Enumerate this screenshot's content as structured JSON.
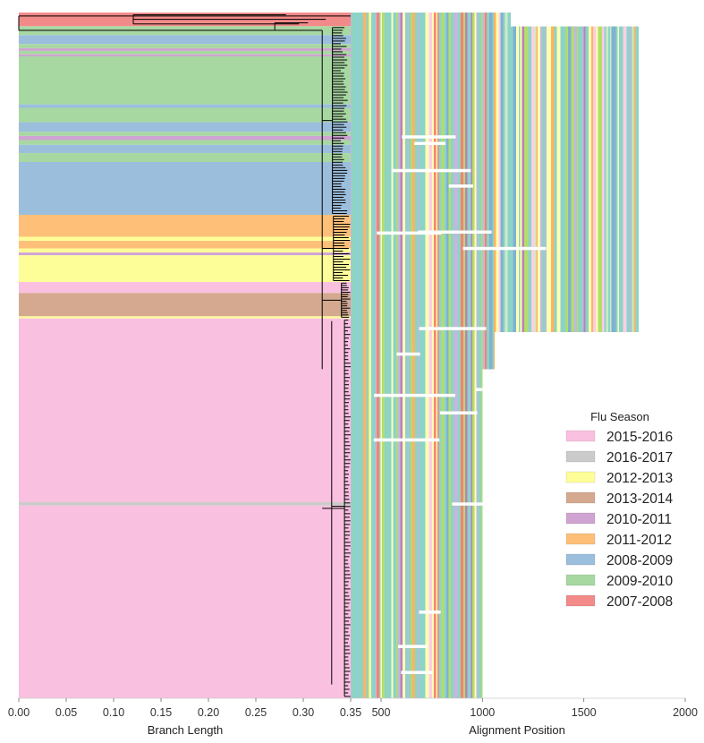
{
  "chart_data": [
    {
      "type": "tree",
      "xlabel": "Branch Length",
      "xlim": [
        0,
        0.35
      ],
      "xticks": [
        "0.00",
        "0.05",
        "0.10",
        "0.15",
        "0.20",
        "0.25",
        "0.30",
        "0.35"
      ],
      "xtick_values": [
        0,
        0.05,
        0.1,
        0.15,
        0.2,
        0.25,
        0.3,
        0.35
      ],
      "clade_bands": [
        {
          "season": "2007-2008",
          "start": 0.0,
          "end": 0.02
        },
        {
          "season": "2009-2010",
          "start": 0.02,
          "end": 0.033
        },
        {
          "season": "2008-2009",
          "start": 0.033,
          "end": 0.046
        },
        {
          "season": "2009-2010",
          "start": 0.046,
          "end": 0.052
        },
        {
          "season": "2010-2011",
          "start": 0.052,
          "end": 0.056
        },
        {
          "season": "2009-2010",
          "start": 0.056,
          "end": 0.061
        },
        {
          "season": "2010-2011",
          "start": 0.061,
          "end": 0.064
        },
        {
          "season": "2009-2010",
          "start": 0.064,
          "end": 0.134
        },
        {
          "season": "2008-2009",
          "start": 0.134,
          "end": 0.139
        },
        {
          "season": "2009-2010",
          "start": 0.139,
          "end": 0.16
        },
        {
          "season": "2008-2009",
          "start": 0.16,
          "end": 0.174
        },
        {
          "season": "2009-2010",
          "start": 0.174,
          "end": 0.18
        },
        {
          "season": "2010-2011",
          "start": 0.18,
          "end": 0.186
        },
        {
          "season": "2009-2010",
          "start": 0.186,
          "end": 0.193
        },
        {
          "season": "2008-2009",
          "start": 0.193,
          "end": 0.205
        },
        {
          "season": "2009-2010",
          "start": 0.205,
          "end": 0.218
        },
        {
          "season": "2008-2009",
          "start": 0.218,
          "end": 0.295
        },
        {
          "season": "2011-2012",
          "start": 0.295,
          "end": 0.327
        },
        {
          "season": "2012-2013",
          "start": 0.327,
          "end": 0.333
        },
        {
          "season": "2011-2012",
          "start": 0.333,
          "end": 0.344
        },
        {
          "season": "2012-2013",
          "start": 0.344,
          "end": 0.35
        },
        {
          "season": "2010-2011",
          "start": 0.35,
          "end": 0.354
        },
        {
          "season": "2012-2013",
          "start": 0.354,
          "end": 0.393
        },
        {
          "season": "2015-2016",
          "start": 0.393,
          "end": 0.409
        },
        {
          "season": "2013-2014",
          "start": 0.409,
          "end": 0.443
        },
        {
          "season": "2012-2013",
          "start": 0.443,
          "end": 0.446
        },
        {
          "season": "2015-2016",
          "start": 0.446,
          "end": 0.714
        },
        {
          "season": "2016-2017",
          "start": 0.714,
          "end": 0.719
        },
        {
          "season": "2015-2016",
          "start": 0.719,
          "end": 1.0
        }
      ]
    },
    {
      "type": "heatmap",
      "xlabel": "Alignment Position",
      "xlim": [
        350,
        2000
      ],
      "xticks": [
        "500",
        "1000",
        "1500",
        "2000"
      ],
      "xtick_values": [
        500,
        1000,
        1500,
        2000
      ],
      "row_groups": [
        {
          "start": 0.0,
          "end": 0.02,
          "length": 1140
        },
        {
          "start": 0.02,
          "end": 0.466,
          "length": 1770
        },
        {
          "start": 0.466,
          "end": 0.52,
          "length": 1060
        },
        {
          "start": 0.52,
          "end": 1.0,
          "length": 1000
        }
      ]
    }
  ],
  "legend": {
    "title": "Flu Season",
    "items": [
      {
        "label": "2015-2016",
        "color": "#F9C0DF"
      },
      {
        "label": "2016-2017",
        "color": "#CBCBCB"
      },
      {
        "label": "2012-2013",
        "color": "#FEFE98"
      },
      {
        "label": "2013-2014",
        "color": "#D4A98F"
      },
      {
        "label": "2010-2011",
        "color": "#CFA4D2"
      },
      {
        "label": "2011-2012",
        "color": "#FEBF79"
      },
      {
        "label": "2008-2009",
        "color": "#9BBEDD"
      },
      {
        "label": "2009-2010",
        "color": "#A8D8A2"
      },
      {
        "label": "2007-2008",
        "color": "#F28A8A"
      }
    ]
  },
  "colors": {
    "nucleotides": [
      "#8DD3C7",
      "#FFFFB3",
      "#BEBADA",
      "#FB8072",
      "#80B1D3",
      "#FDB462",
      "#B3DE69",
      "#FCCDE5",
      "#D9D9D9",
      "#BC80BD",
      "#CCEBC5"
    ],
    "tree": "#000000"
  }
}
